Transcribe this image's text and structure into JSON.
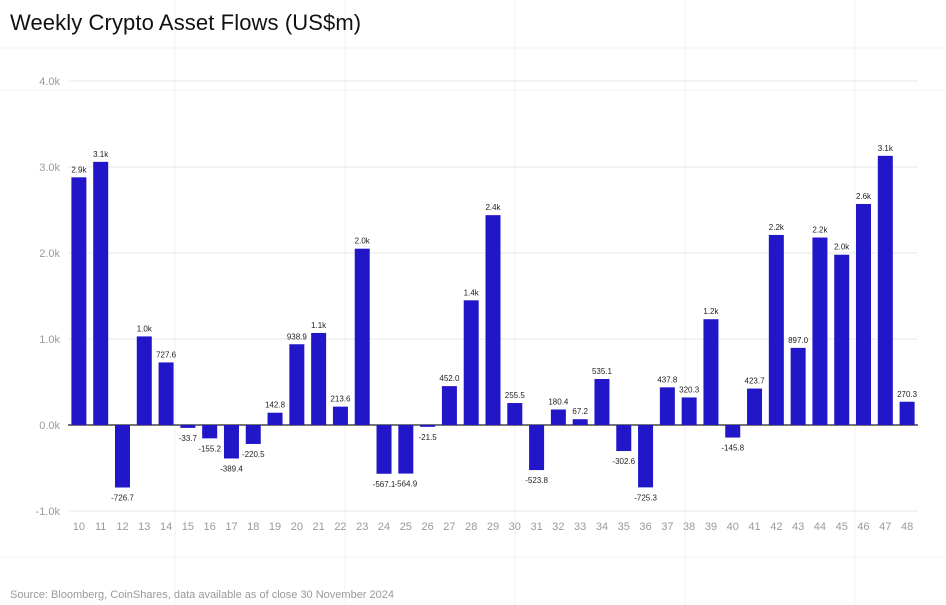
{
  "title": "Weekly Crypto Asset Flows (US$m)",
  "source": "Source: Bloomberg, CoinShares, data available as of close 30 November 2024",
  "colors": {
    "bar": "#2117c9",
    "grid": "#e9e9e9",
    "axis": "#222222"
  },
  "chart_data": {
    "type": "bar",
    "title": "Weekly Crypto Asset Flows (US$m)",
    "xlabel": "",
    "ylabel": "",
    "ylim": [
      -1000,
      4000
    ],
    "y_ticks": [
      4000,
      3000,
      2000,
      1000,
      0,
      -1000
    ],
    "y_tick_labels": [
      "4.0k",
      "3.0k",
      "2.0k",
      "1.0k",
      "0.0k",
      "-1.0k"
    ],
    "grid": true,
    "legend": "none",
    "categories": [
      "10",
      "11",
      "12",
      "13",
      "14",
      "15",
      "16",
      "17",
      "18",
      "19",
      "20",
      "21",
      "22",
      "23",
      "24",
      "25",
      "26",
      "27",
      "28",
      "29",
      "30",
      "31",
      "32",
      "33",
      "34",
      "35",
      "36",
      "37",
      "38",
      "39",
      "40",
      "41",
      "42",
      "43",
      "44",
      "45",
      "46",
      "47",
      "48"
    ],
    "values": [
      2880,
      3060,
      -726.7,
      1030,
      727.6,
      -33.7,
      -155.2,
      -389.4,
      -220.5,
      142.8,
      938.9,
      1070,
      213.6,
      2050,
      -567.1,
      -564.9,
      -21.5,
      452.0,
      1450,
      2440,
      255.5,
      -523.8,
      180.4,
      67.2,
      535.1,
      -302.6,
      -725.3,
      437.8,
      320.3,
      1230,
      -145.8,
      423.7,
      2210,
      897.0,
      2180,
      1980,
      2570,
      3130,
      270.3
    ],
    "data_labels": [
      "2.9k",
      "3.1k",
      "-726.7",
      "1.0k",
      "727.6",
      "-33.7",
      "-155.2",
      "-389.4",
      "-220.5",
      "142.8",
      "938.9",
      "1.1k",
      "213.6",
      "2.0k",
      "-567.1",
      "-564.9",
      "-21.5",
      "452.0",
      "1.4k",
      "2.4k",
      "255.5",
      "-523.8",
      "180.4",
      "67.2",
      "535.1",
      "-302.6",
      "-725.3",
      "437.8",
      "320.3",
      "1.2k",
      "-145.8",
      "423.7",
      "2.2k",
      "897.0",
      "2.2k",
      "2.0k",
      "2.6k",
      "3.1k",
      "270.3"
    ]
  }
}
